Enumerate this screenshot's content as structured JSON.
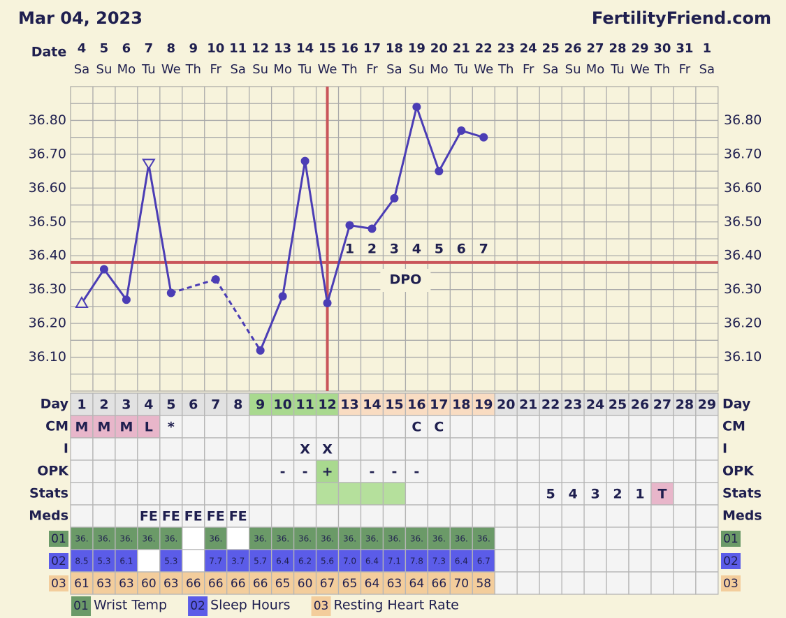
{
  "header": {
    "date": "Mar 04, 2023",
    "site": "FertilityFriend.com"
  },
  "chart_data": {
    "type": "line",
    "x_label": "Date",
    "categories": [
      "4",
      "5",
      "6",
      "7",
      "8",
      "9",
      "10",
      "11",
      "12",
      "13",
      "14",
      "15",
      "16",
      "17",
      "18",
      "19",
      "20",
      "21",
      "22",
      "23",
      "24",
      "25",
      "26",
      "27",
      "28",
      "29",
      "30",
      "31",
      "1"
    ],
    "weekdays": [
      "Sa",
      "Su",
      "Mo",
      "Tu",
      "We",
      "Th",
      "Fr",
      "Sa",
      "Su",
      "Mo",
      "Tu",
      "We",
      "Th",
      "Fr",
      "Sa",
      "Su",
      "Mo",
      "Tu",
      "We",
      "Th",
      "Fr",
      "Sa",
      "Su",
      "Mo",
      "Tu",
      "We",
      "Th",
      "Fr",
      "Sa"
    ],
    "values": [
      36.26,
      36.36,
      36.27,
      36.67,
      36.29,
      null,
      36.33,
      null,
      36.12,
      36.28,
      36.68,
      36.26,
      36.49,
      36.48,
      36.57,
      36.84,
      36.65,
      36.77,
      36.75,
      null,
      null,
      null,
      null,
      null,
      null,
      null,
      null,
      null,
      null
    ],
    "markers": [
      "triangle-up",
      "circle",
      "circle",
      "triangle-down",
      "circle",
      null,
      "circle",
      null,
      "circle",
      "circle",
      "circle",
      "circle",
      "circle",
      "circle",
      "circle",
      "circle",
      "circle",
      "circle",
      "circle",
      null,
      null,
      null,
      null,
      null,
      null,
      null,
      null,
      null,
      null
    ],
    "bridge_gaps": "dashed",
    "color": "#4b3db5",
    "ylim": [
      36.0,
      36.9
    ],
    "yticks": [
      {
        "value": 36.1,
        "label": "36.10"
      },
      {
        "value": 36.2,
        "label": "36.20"
      },
      {
        "value": 36.3,
        "label": "36.30"
      },
      {
        "value": 36.4,
        "label": "36.40"
      },
      {
        "value": 36.5,
        "label": "36.50"
      },
      {
        "value": 36.6,
        "label": "36.60"
      },
      {
        "value": 36.7,
        "label": "36.70"
      },
      {
        "value": 36.8,
        "label": "36.80"
      }
    ],
    "minor_yticks": [
      36.05,
      36.15,
      36.25,
      36.35,
      36.45,
      36.55,
      36.65,
      36.75,
      36.85
    ],
    "grid": true,
    "coverline": 36.38,
    "ovulation_day": 12,
    "dpo_label": "DPO",
    "dpo": [
      1,
      2,
      3,
      4,
      5,
      6,
      7
    ],
    "reference_color": "#c9555a"
  },
  "table": {
    "rows": [
      {
        "label": "Day",
        "cells": [
          1,
          2,
          3,
          4,
          5,
          6,
          7,
          8,
          9,
          10,
          11,
          12,
          13,
          14,
          15,
          16,
          17,
          18,
          19,
          20,
          21,
          22,
          23,
          24,
          25,
          26,
          27,
          28,
          29
        ],
        "fills": [
          "#e2e2e2",
          "#e2e2e2",
          "#e2e2e2",
          "#e2e2e2",
          "#e2e2e2",
          "#e2e2e2",
          "#e2e2e2",
          "#e2e2e2",
          "#a9d98f",
          "#a9d98f",
          "#a9d98f",
          "#a9d98f",
          "#f9dcc2",
          "#f9dcc2",
          "#f9dcc2",
          "#f9dcc2",
          "#f9dcc2",
          "#f9dcc2",
          "#f9dcc2",
          "#e2e2e2",
          "#e2e2e2",
          "#e2e2e2",
          "#e2e2e2",
          "#e2e2e2",
          "#e2e2e2",
          "#e2e2e2",
          "#e2e2e2",
          "#e2e2e2",
          "#e2e2e2"
        ]
      },
      {
        "label": "CM",
        "cells": [
          "M",
          "M",
          "M",
          "L",
          "*",
          null,
          null,
          null,
          null,
          null,
          null,
          null,
          null,
          null,
          null,
          "C",
          "C",
          null,
          null,
          null,
          null,
          null,
          null,
          null,
          null,
          null,
          null,
          null,
          null
        ],
        "fills": [
          "#e8b6ca",
          "#e8b6ca",
          "#e8b6ca",
          "#e8b6ca",
          null,
          null,
          null,
          null,
          null,
          null,
          null,
          null,
          null,
          null,
          null,
          null,
          null,
          null,
          null,
          null,
          null,
          null,
          null,
          null,
          null,
          null,
          null,
          null,
          null
        ]
      },
      {
        "label": "I",
        "cells": [
          null,
          null,
          null,
          null,
          null,
          null,
          null,
          null,
          null,
          null,
          "X",
          "X",
          null,
          null,
          null,
          null,
          null,
          null,
          null,
          null,
          null,
          null,
          null,
          null,
          null,
          null,
          null,
          null,
          null
        ]
      },
      {
        "label": "OPK",
        "cells": [
          null,
          null,
          null,
          null,
          null,
          null,
          null,
          null,
          null,
          "-",
          "-",
          "+",
          null,
          "-",
          "-",
          "-",
          null,
          null,
          null,
          null,
          null,
          null,
          null,
          null,
          null,
          null,
          null,
          null,
          null
        ],
        "fills": [
          null,
          null,
          null,
          null,
          null,
          null,
          null,
          null,
          null,
          null,
          null,
          "#a9d98f",
          null,
          null,
          null,
          null,
          null,
          null,
          null,
          null,
          null,
          null,
          null,
          null,
          null,
          null,
          null,
          null,
          null
        ]
      },
      {
        "label": "Stats",
        "cells": [
          null,
          null,
          null,
          null,
          null,
          null,
          null,
          null,
          null,
          null,
          null,
          null,
          null,
          null,
          null,
          null,
          null,
          null,
          null,
          null,
          null,
          "5",
          "4",
          "3",
          "2",
          "1",
          "T",
          null,
          null
        ],
        "fills": [
          null,
          null,
          null,
          null,
          null,
          null,
          null,
          null,
          null,
          null,
          null,
          "#b5e09c",
          "#b5e09c",
          "#b5e09c",
          "#b5e09c",
          null,
          null,
          null,
          null,
          null,
          null,
          null,
          null,
          null,
          null,
          null,
          "#e8b6ca",
          null,
          null
        ]
      },
      {
        "label": "Meds",
        "cells": [
          null,
          null,
          null,
          "FE",
          "FE",
          "FE",
          "FE",
          "FE",
          null,
          null,
          null,
          null,
          null,
          null,
          null,
          null,
          null,
          null,
          null,
          null,
          null,
          null,
          null,
          null,
          null,
          null,
          null,
          null,
          null
        ]
      },
      {
        "label": "01",
        "badge": "#6b9a68",
        "value_fill": "#6b9a68",
        "text_color": "#ffffff",
        "font_size": 12,
        "cells": [
          "36.",
          "36.",
          "36.",
          "36.",
          "36.",
          null,
          "36.",
          null,
          "36.",
          "36.",
          "36.",
          "36.",
          "36.",
          "36.",
          "36.",
          "36.",
          "36.",
          "36.",
          "36.",
          null,
          null,
          null,
          null,
          null,
          null,
          null,
          null,
          null,
          null
        ],
        "fills": [
          null,
          null,
          null,
          null,
          null,
          "#ffffff",
          null,
          "#ffffff",
          null,
          null,
          null,
          null,
          null,
          null,
          null,
          null,
          null,
          null,
          null,
          null,
          null,
          null,
          null,
          null,
          null,
          null,
          null,
          null,
          null
        ]
      },
      {
        "label": "02",
        "badge": "#5b5ce8",
        "value_fill": "#5b5ce8",
        "text_color": "#ffffff",
        "font_size": 12,
        "cells": [
          "8.5",
          "5.3",
          "6.1",
          null,
          "5.3",
          null,
          "7.7",
          "3.7",
          "5.7",
          "6.4",
          "6.2",
          "5.6",
          "7.0",
          "6.4",
          "7.1",
          "7.8",
          "7.3",
          "6.4",
          "6.7",
          null,
          null,
          null,
          null,
          null,
          null,
          null,
          null,
          null,
          null
        ],
        "fills": [
          null,
          null,
          null,
          "#ffffff",
          null,
          "#ffffff",
          null,
          null,
          null,
          null,
          null,
          null,
          null,
          null,
          null,
          null,
          null,
          null,
          null,
          null,
          null,
          null,
          null,
          null,
          null,
          null,
          null,
          null,
          null
        ]
      },
      {
        "label": "03",
        "badge": "#f3cd9c",
        "value_fill": "#f3cd9c",
        "text_color": "#333333",
        "font_size": 17,
        "cells": [
          61,
          63,
          63,
          60,
          63,
          66,
          66,
          66,
          66,
          65,
          60,
          67,
          65,
          64,
          63,
          64,
          66,
          70,
          58,
          null,
          null,
          null,
          null,
          null,
          null,
          null,
          null,
          null,
          null
        ]
      }
    ]
  },
  "legend": [
    {
      "badge": "01",
      "label": "Wrist Temp",
      "color": "#6b9a68"
    },
    {
      "badge": "02",
      "label": "Sleep Hours",
      "color": "#5b5ce8"
    },
    {
      "badge": "03",
      "label": "Resting Heart Rate",
      "color": "#f3cd9c"
    }
  ]
}
